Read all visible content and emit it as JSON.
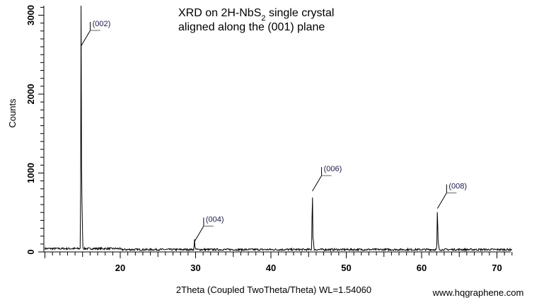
{
  "chart_data": {
    "type": "line",
    "title_lines": [
      {
        "parts": [
          {
            "text": "XRD on 2H-NbS",
            "sub": false
          },
          {
            "text": "2",
            "sub": true
          },
          {
            "text": " single crystal",
            "sub": false
          }
        ]
      },
      {
        "parts": [
          {
            "text": "aligned along the (001) plane",
            "sub": false
          }
        ]
      }
    ],
    "xlabel": "2Theta (Coupled TwoTheta/Theta) WL=1.54060",
    "ylabel": "Counts",
    "xlim": [
      10,
      72
    ],
    "ylim": [
      0,
      3100
    ],
    "x_ticks": [
      20,
      30,
      40,
      50,
      60,
      70
    ],
    "y_ticks": [
      0,
      1000,
      2000,
      3000
    ],
    "grid": false,
    "baseline_counts": 30,
    "peaks": [
      {
        "label": "(002)",
        "x": 14.8,
        "y": 3200,
        "shoulder": 1950
      },
      {
        "label": "(004)",
        "x": 29.85,
        "y": 130,
        "shoulder": 80
      },
      {
        "label": "(006)",
        "x": 45.5,
        "y": 770,
        "shoulder": 390
      },
      {
        "label": "(008)",
        "x": 62.1,
        "y": 550,
        "shoulder": 290
      }
    ],
    "series": [
      {
        "color": "#000000"
      }
    ]
  },
  "watermark": "www.hqgraphene.com"
}
